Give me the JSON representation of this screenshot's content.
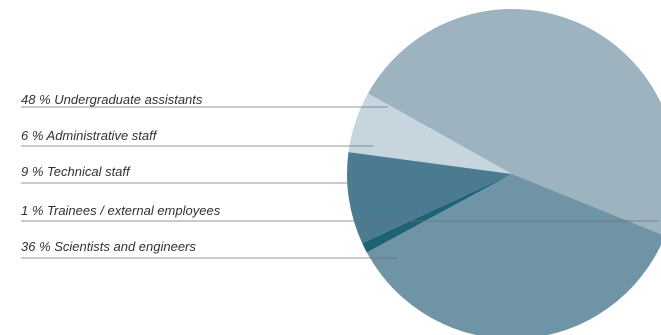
{
  "chart_data": {
    "type": "pie",
    "slices": [
      {
        "percent": 48,
        "label": "48 % Undergraduate assistants",
        "color": "#9eb3c0"
      },
      {
        "percent": 6,
        "label": "6 % Administrative staff",
        "color": "#c7d5de"
      },
      {
        "percent": 9,
        "label": "9 % Technical staff",
        "color": "#4b7b91"
      },
      {
        "percent": 1,
        "label": "1 % Trainees / external employees",
        "color": "#1d6275"
      },
      {
        "percent": 36,
        "label": "36 % Scientists and engineers",
        "color": "#6e94a6"
      }
    ],
    "leader_line_color": "#6d7378"
  }
}
